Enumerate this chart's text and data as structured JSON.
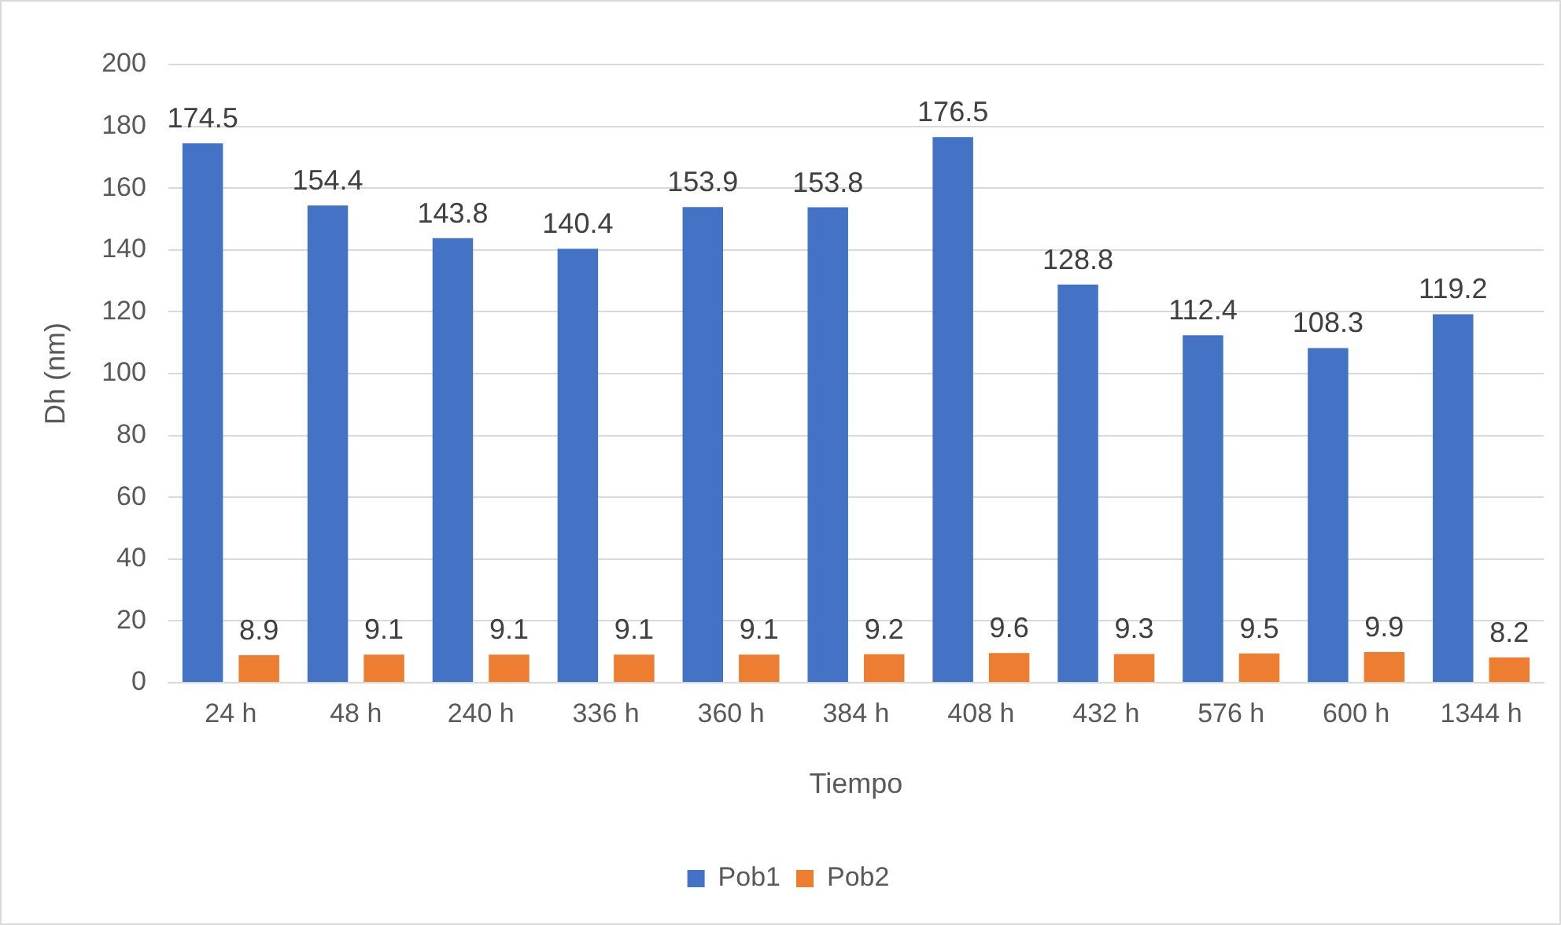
{
  "chart_data": {
    "type": "bar",
    "xlabel": "Tiempo",
    "ylabel": "Dh (nm)",
    "categories": [
      "24 h",
      "48 h",
      "240 h",
      "336 h",
      "360 h",
      "384 h",
      "408 h",
      "432 h",
      "576 h",
      "600 h",
      "1344 h"
    ],
    "series": [
      {
        "name": "Pob1",
        "color": "#4472c4",
        "values": [
          174.5,
          154.4,
          143.8,
          140.4,
          153.9,
          153.8,
          176.5,
          128.8,
          112.4,
          108.3,
          119.2
        ]
      },
      {
        "name": "Pob2",
        "color": "#ed7d31",
        "values": [
          8.9,
          9.1,
          9.1,
          9.1,
          9.1,
          9.2,
          9.6,
          9.3,
          9.5,
          9.9,
          8.2
        ]
      }
    ],
    "ylim": [
      0,
      200
    ],
    "yticks": [
      0,
      20,
      40,
      60,
      80,
      100,
      120,
      140,
      160,
      180,
      200
    ],
    "grid": "y",
    "legend": "bottom",
    "data_labels": true
  }
}
